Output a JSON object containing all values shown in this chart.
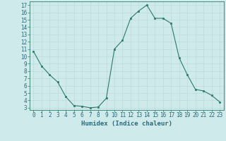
{
  "x": [
    0,
    1,
    2,
    3,
    4,
    5,
    6,
    7,
    8,
    9,
    10,
    11,
    12,
    13,
    14,
    15,
    16,
    17,
    18,
    19,
    20,
    21,
    22,
    23
  ],
  "y": [
    10.7,
    8.7,
    7.5,
    6.5,
    4.5,
    3.3,
    3.2,
    3.0,
    3.1,
    4.3,
    11.0,
    12.2,
    15.2,
    16.2,
    17.0,
    15.2,
    15.2,
    14.5,
    9.8,
    7.5,
    5.5,
    5.3,
    4.7,
    3.8
  ],
  "line_color": "#2d7a6a",
  "marker": "s",
  "marker_size": 2.0,
  "xlabel": "Humidex (Indice chaleur)",
  "xlim": [
    -0.5,
    23.5
  ],
  "ylim": [
    2.7,
    17.5
  ],
  "yticks": [
    3,
    4,
    5,
    6,
    7,
    8,
    9,
    10,
    11,
    12,
    13,
    14,
    15,
    16,
    17
  ],
  "xticks": [
    0,
    1,
    2,
    3,
    4,
    5,
    6,
    7,
    8,
    9,
    10,
    11,
    12,
    13,
    14,
    15,
    16,
    17,
    18,
    19,
    20,
    21,
    22,
    23
  ],
  "bg_color": "#ceeaea",
  "grid_color": "#b8d8d8",
  "label_color": "#2d6a7a",
  "font_size": 5.5,
  "xlabel_fontsize": 6.5,
  "linewidth": 0.8
}
